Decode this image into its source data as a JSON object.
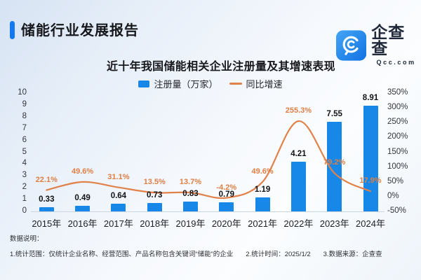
{
  "header": {
    "title": "储能行业发展报告"
  },
  "logo": {
    "name": "企查查",
    "domain": "Qcc.com",
    "icon": "magnifier-c-icon"
  },
  "chart": {
    "title": "近十年我国储能相关企业注册量及其增速表现",
    "legend_bar": "注册量（万家）",
    "legend_line": "同比增速"
  },
  "chart_data": {
    "type": "combo",
    "categories": [
      "2015年",
      "2016年",
      "2017年",
      "2018年",
      "2019年",
      "2020年",
      "2021年",
      "2022年",
      "2023年",
      "2024年"
    ],
    "series": [
      {
        "name": "注册量（万家）",
        "type": "bar",
        "axis": "left",
        "values": [
          0.33,
          0.49,
          0.64,
          0.73,
          0.83,
          0.79,
          1.19,
          4.21,
          7.55,
          8.91
        ],
        "labels": [
          "0.33",
          "0.49",
          "0.64",
          "0.73",
          "0.83",
          "0.79",
          "1.19",
          "4.21",
          "7.55",
          "8.91"
        ]
      },
      {
        "name": "同比增速",
        "type": "line",
        "axis": "right",
        "values": [
          22.1,
          49.6,
          31.1,
          13.5,
          13.7,
          -4.2,
          49.6,
          255.3,
          79.2,
          17.9
        ],
        "labels": [
          "22.1%",
          "49.6%",
          "31.1%",
          "13.5%",
          "13.7%",
          "-4.2%",
          "49.6%",
          "255.3%",
          "79.2%",
          "17.9%"
        ]
      }
    ],
    "left_axis": {
      "min": 0,
      "max": 10,
      "ticks": [
        0,
        1,
        2,
        3,
        4,
        5,
        6,
        7,
        8,
        9,
        10
      ],
      "tick_labels": [
        "0",
        "1",
        "2",
        "3",
        "4",
        "5",
        "6",
        "7",
        "8",
        "9",
        "10"
      ]
    },
    "right_axis": {
      "min": -50,
      "max": 350,
      "ticks": [
        -50,
        0,
        50,
        100,
        150,
        200,
        250,
        300,
        350
      ],
      "tick_labels": [
        "-50%",
        "0%",
        "50%",
        "100%",
        "150%",
        "200%",
        "250%",
        "300%",
        "350%"
      ]
    },
    "grid": false,
    "legend_position": "top-center"
  },
  "footer": {
    "heading": "数据说明：",
    "notes": [
      "1.统计范围：仅统计企业名称、经营范围、产品名称包含关键词“储能”的企业",
      "2.统计时间：2025/1/2",
      "3.数据来源：企查查"
    ]
  },
  "colors": {
    "accent": "#1478F0",
    "bar": "#1787E8",
    "line": "#E0824A",
    "line_label": "#DF7F45",
    "logo_gradient_start": "#44A5F4",
    "logo_gradient_end": "#1272E4",
    "background_top": "#D6E3F3",
    "background_bottom": "#EEF4FA",
    "text_dark": "#17191D"
  }
}
